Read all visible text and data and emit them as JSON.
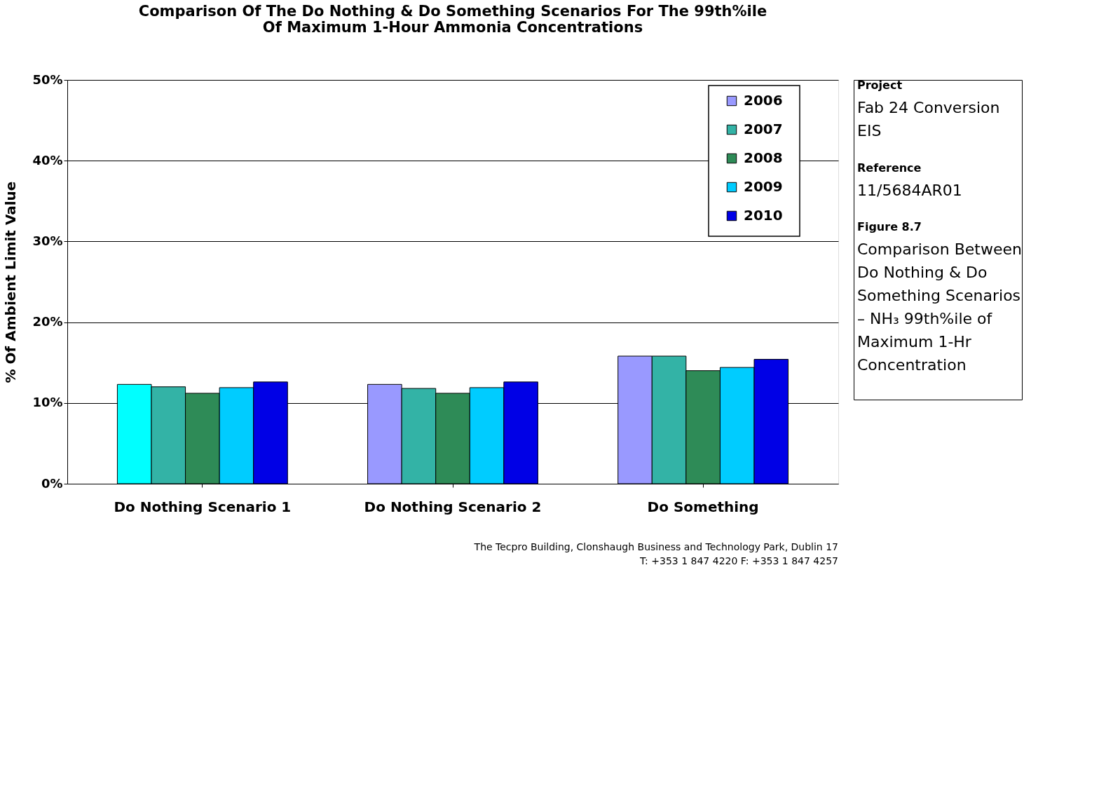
{
  "chart_data": {
    "type": "bar",
    "title": [
      "Comparison Of The Do Nothing & Do Something Scenarios For The 99th%ile",
      "Of Maximum 1-Hour Ammonia Concentrations"
    ],
    "ylabel": "% Of Ambient Limit Value",
    "categories": [
      "Do Nothing Scenario 1",
      "Do Nothing Scenario 2",
      "Do Something"
    ],
    "series": [
      {
        "name": "2006",
        "color": "#9999ff",
        "colors": [
          "#00ffff",
          "#9999ff",
          "#9999ff"
        ],
        "values": [
          12.3,
          12.3,
          15.8
        ]
      },
      {
        "name": "2007",
        "color": "#33b3a6",
        "values": [
          12.0,
          11.8,
          15.8
        ]
      },
      {
        "name": "2008",
        "color": "#2e8b57",
        "values": [
          11.2,
          11.2,
          14.0
        ]
      },
      {
        "name": "2009",
        "color": "#00ccff",
        "values": [
          11.9,
          11.9,
          14.4
        ]
      },
      {
        "name": "2010",
        "color": "#0000e6",
        "values": [
          12.6,
          12.6,
          15.4
        ]
      }
    ],
    "ylim": [
      0,
      50
    ],
    "yticks": [
      {
        "value": 0,
        "label": "0%"
      },
      {
        "value": 10,
        "label": "10%"
      },
      {
        "value": 20,
        "label": "20%"
      },
      {
        "value": 30,
        "label": "30%"
      },
      {
        "value": 40,
        "label": "40%"
      },
      {
        "value": 50,
        "label": "50%"
      }
    ],
    "grid": "y",
    "legend": "top right",
    "annotations": [
      "Project",
      "Fab 24 Conversion EIS",
      "Reference",
      "11/5684AR01",
      "Figure 8.7",
      "Comparison Between Do Nothing & Do Something Scenarios – NH₃ 99th%ile of Maximum 1-Hr Concentration",
      "The Tecpro Building, Clonshaugh Business and Technology Park, Dublin 17",
      "T: +353 1 847 4220     F: +353 1 847 4257"
    ]
  }
}
